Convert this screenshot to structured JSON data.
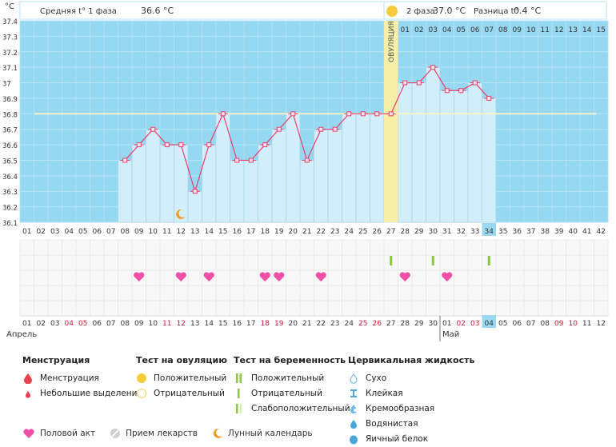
{
  "header": {
    "unit": "°C",
    "phase1_label": "Средняя t° 1 фаза",
    "phase1_value": "36.6 °C",
    "phase2_label": "2 фаза",
    "phase2_value": "37.0 °C",
    "diff_label": "Разница t°",
    "diff_value": "0.4 °C"
  },
  "chart_data": {
    "type": "line",
    "title": "",
    "ylabel": "°C",
    "ylim": [
      36.1,
      37.4
    ],
    "yticks": [
      "36.1",
      "36.2",
      "36.3",
      "36.4",
      "36.5",
      "36.6",
      "36.7",
      "36.8",
      "36.9",
      "37",
      "37.1",
      "37.2",
      "37.3",
      "37.4"
    ],
    "cycle_days": [
      "01",
      "02",
      "03",
      "04",
      "05",
      "06",
      "07",
      "08",
      "09",
      "10",
      "11",
      "12",
      "13",
      "14",
      "15",
      "16",
      "17",
      "18",
      "19",
      "20",
      "21",
      "22",
      "23",
      "24",
      "25",
      "26",
      "27",
      "28",
      "29",
      "30",
      "31",
      "32",
      "33",
      "34",
      "35",
      "36",
      "37",
      "38",
      "39",
      "40",
      "41",
      "42"
    ],
    "luteal_days": [
      "01",
      "02",
      "03",
      "04",
      "05",
      "06",
      "07",
      "08",
      "09",
      "10",
      "11",
      "12",
      "13",
      "14",
      "15"
    ],
    "ovulation_day": 27,
    "ovulation_label": "ОВУЛЯЦИЯ",
    "today_day": 34,
    "coverline": 36.8,
    "temperature_series": {
      "name": "Базальная температура",
      "start_day": 8,
      "values": [
        36.5,
        36.6,
        36.7,
        36.6,
        36.6,
        36.3,
        36.6,
        36.8,
        36.5,
        36.5,
        36.6,
        36.7,
        36.8,
        36.5,
        36.7,
        36.7,
        36.8,
        36.8,
        36.8,
        36.8,
        37.0,
        37.0,
        37.1,
        36.95,
        36.95,
        37.0,
        36.9
      ]
    },
    "moon_day": 12,
    "intercourse_days": [
      9,
      12,
      14,
      18,
      19,
      22,
      28,
      31
    ],
    "ovulation_test_negative_days": [
      27,
      30,
      34
    ],
    "calendar_dates": [
      "01",
      "02",
      "03",
      "04",
      "05",
      "06",
      "07",
      "08",
      "09",
      "10",
      "11",
      "12",
      "13",
      "14",
      "15",
      "16",
      "17",
      "18",
      "19",
      "20",
      "21",
      "22",
      "23",
      "24",
      "25",
      "26",
      "27",
      "28",
      "29",
      "30",
      "01",
      "02",
      "03",
      "04",
      "05",
      "06",
      "07",
      "08",
      "09",
      "10",
      "11",
      "12"
    ],
    "weekend_days": [
      4,
      5,
      11,
      12,
      18,
      19,
      25,
      26,
      32,
      33,
      39,
      40
    ],
    "month1": "Апрель",
    "month2": "Май",
    "month2_start_day": 31
  },
  "colors": {
    "sky": "#96d8f2",
    "bar": "#d3eefb",
    "bar_edge": "#9fcbe2",
    "line": "#e8406e",
    "point_fill": "#fde3ec",
    "coverline": "#f5f2c8",
    "ovulation_band": "#f7eea7",
    "today": "#9ad8f0",
    "heart": "#ef4fa4",
    "test_green": "#8cc63f",
    "moon": "#f39c22",
    "weekend": "#d0193b"
  },
  "legend": {
    "menstruation": {
      "title": "Менструация",
      "items": [
        "Менструация",
        "Небольшие выделения"
      ]
    },
    "ovulation_test": {
      "title": "Тест на овуляцию",
      "items": [
        "Положительный",
        "Отрицательный"
      ]
    },
    "pregnancy_test": {
      "title": "Тест на беременность",
      "items": [
        "Положительный",
        "Отрицательный",
        "Слабоположительный"
      ]
    },
    "cervical_fluid": {
      "title": "Цервикальная жидкость",
      "items": [
        "Сухо",
        "Клейкая",
        "Кремообразная",
        "Водянистая",
        "Яичный белок"
      ]
    },
    "bottom": {
      "intercourse": "Половой акт",
      "medication": "Прием лекарств",
      "lunar": "Лунный календарь"
    }
  }
}
